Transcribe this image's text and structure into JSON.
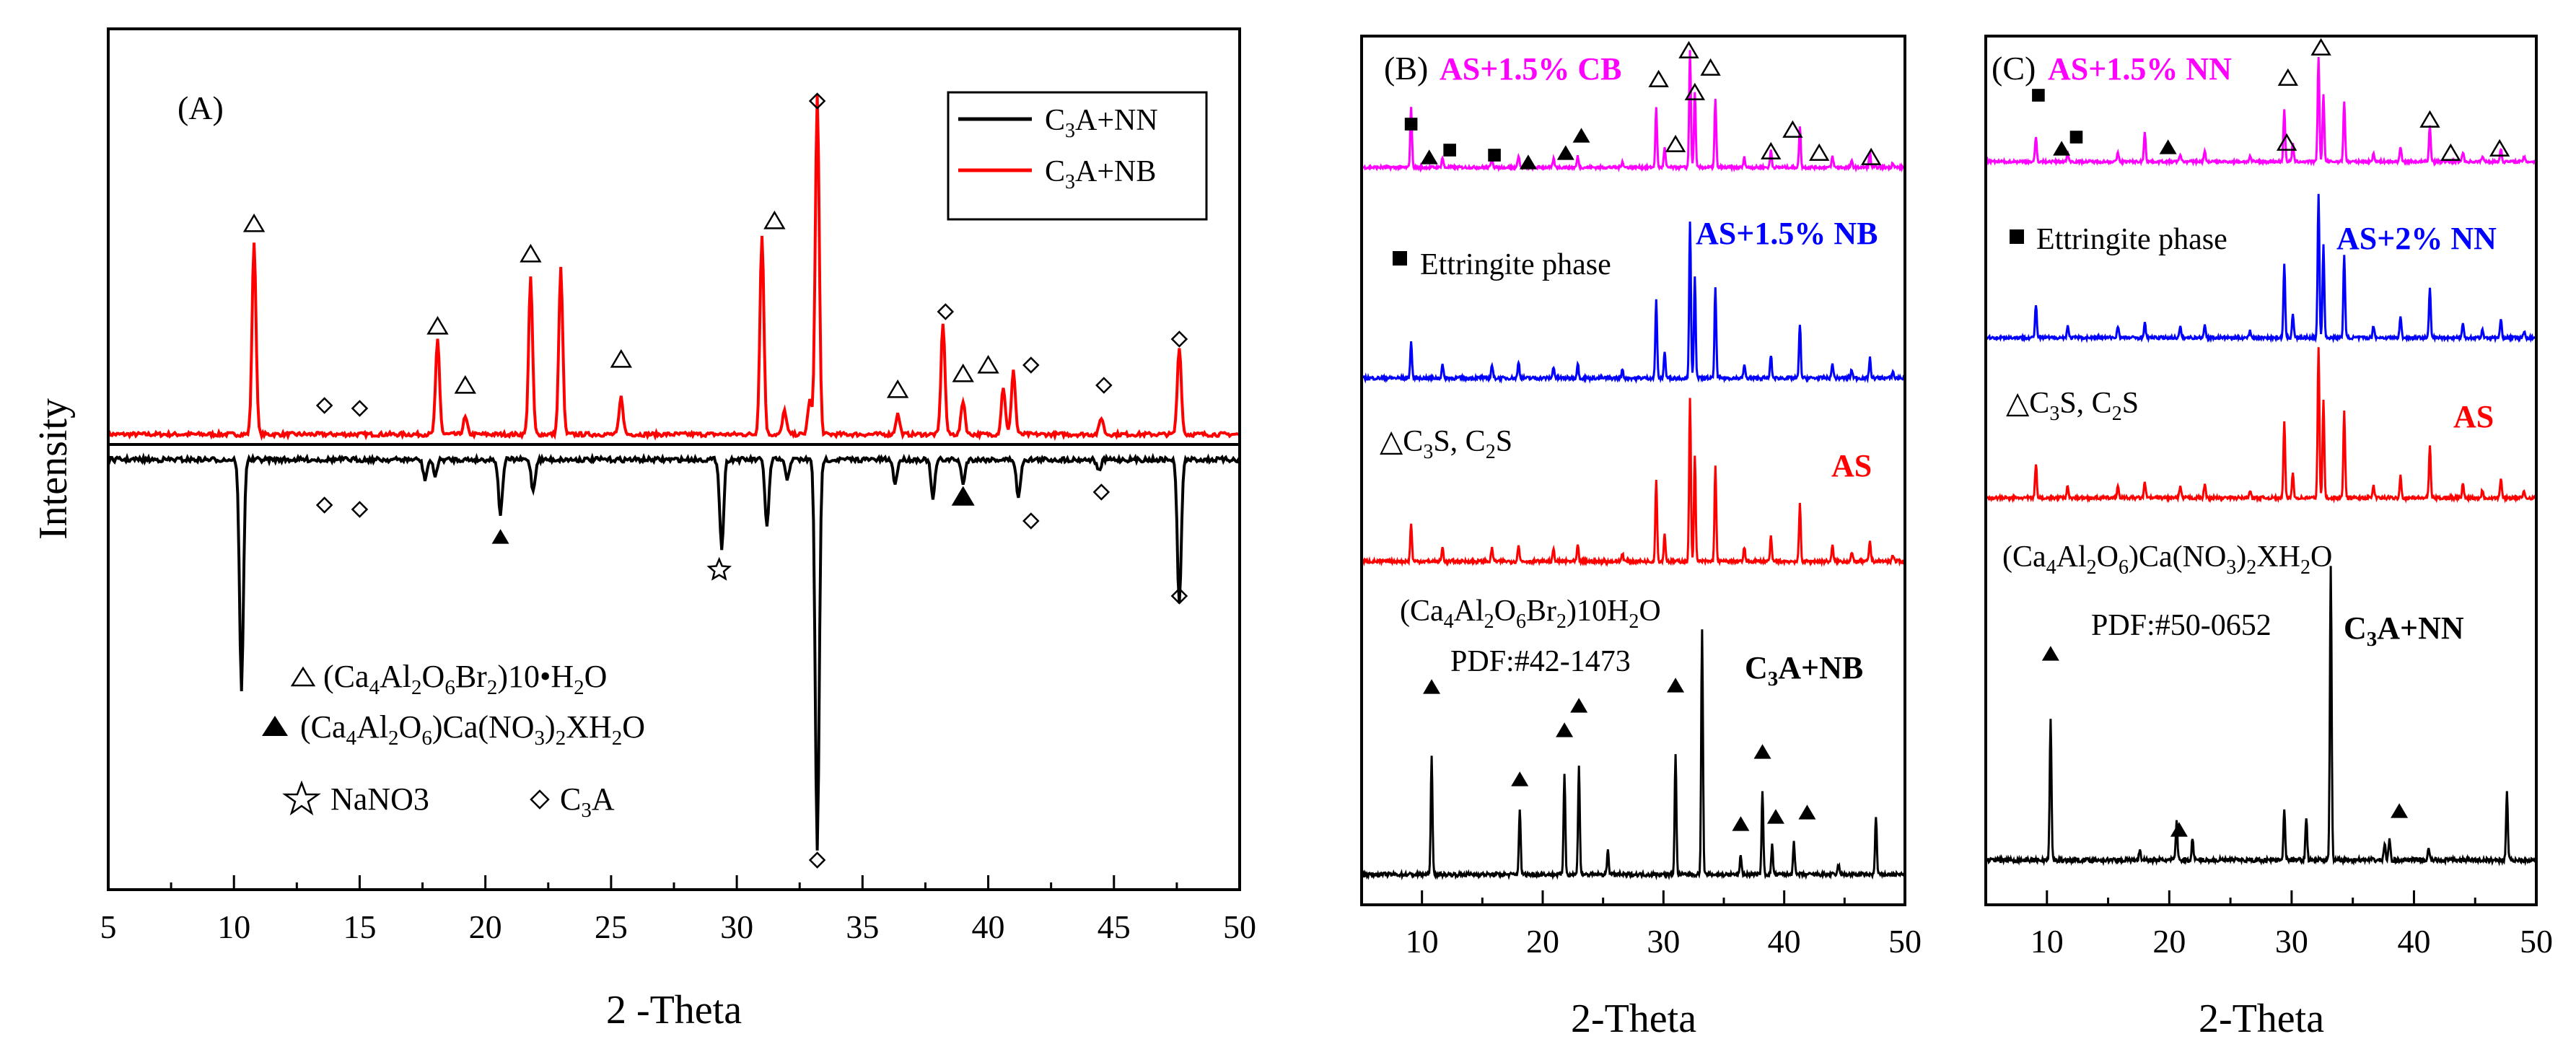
{
  "colors": {
    "black": "#000000",
    "red": "#ff0000",
    "magenta": "#ff00ff",
    "blue": "#0000ff"
  },
  "chart_data": [
    {
      "panel": "A",
      "type": "line",
      "panel_label": "(A)",
      "xlabel": "2 -Theta",
      "ylabel": "Intensity",
      "xlim": [
        5,
        50
      ],
      "x_ticks": [
        5,
        10,
        15,
        20,
        25,
        30,
        35,
        40,
        45,
        50
      ],
      "legend": {
        "placement": "top-right",
        "entries": [
          {
            "label": "C3A+NN",
            "color": "#000000"
          },
          {
            "label": "C3A+NB",
            "color": "#ff0000"
          }
        ]
      },
      "series": [
        {
          "name": "C3A+NB",
          "color": "#ff0000",
          "direction": "up",
          "peaks": [
            {
              "x": 10.8,
              "h": 0.57
            },
            {
              "x": 18.1,
              "h": 0.28
            },
            {
              "x": 19.2,
              "h": 0.05
            },
            {
              "x": 21.8,
              "h": 0.46
            },
            {
              "x": 23.0,
              "h": 0.49
            },
            {
              "x": 25.4,
              "h": 0.11
            },
            {
              "x": 31.0,
              "h": 0.59
            },
            {
              "x": 31.9,
              "h": 0.07
            },
            {
              "x": 32.9,
              "h": 0.1
            },
            {
              "x": 33.2,
              "h": 1.0
            },
            {
              "x": 36.4,
              "h": 0.06
            },
            {
              "x": 38.2,
              "h": 0.33
            },
            {
              "x": 39.0,
              "h": 0.1
            },
            {
              "x": 40.6,
              "h": 0.14
            },
            {
              "x": 41.0,
              "h": 0.19
            },
            {
              "x": 44.5,
              "h": 0.05
            },
            {
              "x": 47.6,
              "h": 0.26
            }
          ]
        },
        {
          "name": "C3A+NN",
          "color": "#000000",
          "direction": "down",
          "peaks": [
            {
              "x": 10.3,
              "h": 0.59
            },
            {
              "x": 17.6,
              "h": 0.05
            },
            {
              "x": 18.0,
              "h": 0.04
            },
            {
              "x": 20.6,
              "h": 0.14
            },
            {
              "x": 21.9,
              "h": 0.08
            },
            {
              "x": 29.4,
              "h": 0.23
            },
            {
              "x": 31.2,
              "h": 0.17
            },
            {
              "x": 32.0,
              "h": 0.05
            },
            {
              "x": 33.2,
              "h": 1.0
            },
            {
              "x": 36.3,
              "h": 0.06
            },
            {
              "x": 37.8,
              "h": 0.1
            },
            {
              "x": 39.0,
              "h": 0.06
            },
            {
              "x": 41.2,
              "h": 0.1
            },
            {
              "x": 44.4,
              "h": 0.03
            },
            {
              "x": 47.6,
              "h": 0.37
            }
          ]
        }
      ],
      "annotations": {
        "triangle_open": [
          10.8,
          18.1,
          19.2,
          21.8,
          25.4,
          31.5,
          36.4,
          39.0,
          40.0
        ],
        "diamond": [
          13.6,
          15.0,
          33.2,
          38.3,
          41.7,
          44.6,
          47.6,
          13.6,
          15.0,
          41.7,
          44.5,
          47.6,
          33.2
        ],
        "triangle_filled": [
          20.6,
          39.0
        ],
        "star": [
          29.3
        ]
      },
      "key": [
        {
          "symbol": "triangle-open",
          "text": "(Ca4Al2O6Br2)10•H2O"
        },
        {
          "symbol": "triangle-filled",
          "text": "(Ca4Al2O6)Ca(NO3)2XH2O"
        },
        {
          "symbol": "star",
          "text": "NaNO3"
        },
        {
          "symbol": "diamond",
          "text": "C3A"
        }
      ]
    },
    {
      "panel": "B",
      "type": "line",
      "panel_label": "(B)",
      "xlabel": "2-Theta",
      "xlim": [
        5,
        50
      ],
      "x_ticks": [
        10,
        20,
        30,
        40,
        50
      ],
      "series": [
        {
          "name": "AS+1.5% CB",
          "color": "#ff00ff"
        },
        {
          "name": "AS+1.5% NB",
          "color": "#0000ff"
        },
        {
          "name": "AS",
          "color": "#ff0000"
        },
        {
          "name": "C3A+NB",
          "color": "#000000"
        }
      ],
      "annotations": {
        "ettringite_label": "Ettringite phase",
        "c3s_label": "C3S, C2S",
        "phase_label": "(Ca4Al2O6Br2)10H2O",
        "pdf_label": "PDF:#42-1473"
      }
    },
    {
      "panel": "C",
      "type": "line",
      "panel_label": "(C)",
      "xlabel": "2-Theta",
      "xlim": [
        5,
        50
      ],
      "x_ticks": [
        10,
        20,
        30,
        40,
        50
      ],
      "series": [
        {
          "name": "AS+1.5% NN",
          "color": "#ff00ff"
        },
        {
          "name": "AS+2% NN",
          "color": "#0000ff"
        },
        {
          "name": "AS",
          "color": "#ff0000"
        },
        {
          "name": "C3A+NN",
          "color": "#000000"
        }
      ],
      "annotations": {
        "ettringite_label": "Ettringite phase",
        "c3s_label": "C3S, C2S",
        "phase_label": "(Ca4Al2O6)Ca(NO3)2XH2O",
        "pdf_label": "PDF:#50-0652"
      }
    }
  ]
}
